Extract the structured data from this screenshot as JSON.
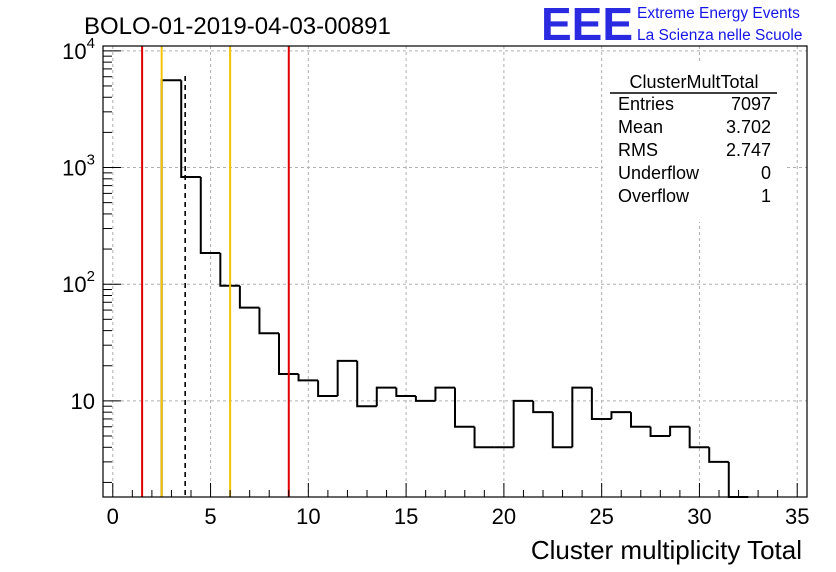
{
  "chart_data": {
    "type": "histogram",
    "title": "BOLO-01-2019-04-03-00891",
    "xlabel": "Cluster multiplicity Total",
    "ylabel": "",
    "xlim": [
      -0.5,
      35.5
    ],
    "ylim": [
      1.5,
      11000
    ],
    "log_y": true,
    "grid": true,
    "bin_width": 1,
    "x_ticks": [
      "0",
      "5",
      "10",
      "15",
      "20",
      "25",
      "30",
      "35"
    ],
    "y_ticks": [
      {
        "value": 10,
        "base": "10",
        "exp": ""
      },
      {
        "value": 100,
        "base": "10",
        "exp": "2"
      },
      {
        "value": 1000,
        "base": "10",
        "exp": "3"
      },
      {
        "value": 10000,
        "base": "10",
        "exp": "4"
      }
    ],
    "bins": [
      {
        "x": 3,
        "count": 5600
      },
      {
        "x": 4,
        "count": 830
      },
      {
        "x": 5,
        "count": 185
      },
      {
        "x": 6,
        "count": 97
      },
      {
        "x": 7,
        "count": 63
      },
      {
        "x": 8,
        "count": 38
      },
      {
        "x": 9,
        "count": 17
      },
      {
        "x": 10,
        "count": 15
      },
      {
        "x": 11,
        "count": 11
      },
      {
        "x": 12,
        "count": 22
      },
      {
        "x": 13,
        "count": 9
      },
      {
        "x": 14,
        "count": 13
      },
      {
        "x": 15,
        "count": 11
      },
      {
        "x": 16,
        "count": 10
      },
      {
        "x": 17,
        "count": 13
      },
      {
        "x": 18,
        "count": 6
      },
      {
        "x": 19,
        "count": 4
      },
      {
        "x": 20,
        "count": 4
      },
      {
        "x": 21,
        "count": 10
      },
      {
        "x": 22,
        "count": 8
      },
      {
        "x": 23,
        "count": 4
      },
      {
        "x": 24,
        "count": 13
      },
      {
        "x": 25,
        "count": 7
      },
      {
        "x": 26,
        "count": 8
      },
      {
        "x": 27,
        "count": 6
      },
      {
        "x": 28,
        "count": 5
      },
      {
        "x": 29,
        "count": 6
      },
      {
        "x": 30,
        "count": 4
      },
      {
        "x": 31,
        "count": 3
      },
      {
        "x": 32,
        "count": 1
      }
    ],
    "reference_lines": [
      {
        "x": 1.5,
        "color": "#e00000",
        "style": "solid"
      },
      {
        "x": 2.5,
        "color": "#f5c400",
        "style": "solid"
      },
      {
        "x": 3.702,
        "color": "#000000",
        "style": "dashed"
      },
      {
        "x": 6.0,
        "color": "#f5c400",
        "style": "solid"
      },
      {
        "x": 9.0,
        "color": "#e00000",
        "style": "solid"
      }
    ],
    "stats_box": {
      "title": "ClusterMultTotal",
      "rows": [
        {
          "label": "Entries",
          "value": "7097"
        },
        {
          "label": "Mean",
          "value": "3.702"
        },
        {
          "label": "RMS",
          "value": "2.747"
        },
        {
          "label": "Underflow",
          "value": "0"
        },
        {
          "label": "Overflow",
          "value": "1"
        }
      ]
    }
  },
  "logo": {
    "mark": "EEE",
    "line1": "Extreme Energy Events",
    "line2": "La Scienza nelle Scuole",
    "color": "#2a2ae0"
  }
}
